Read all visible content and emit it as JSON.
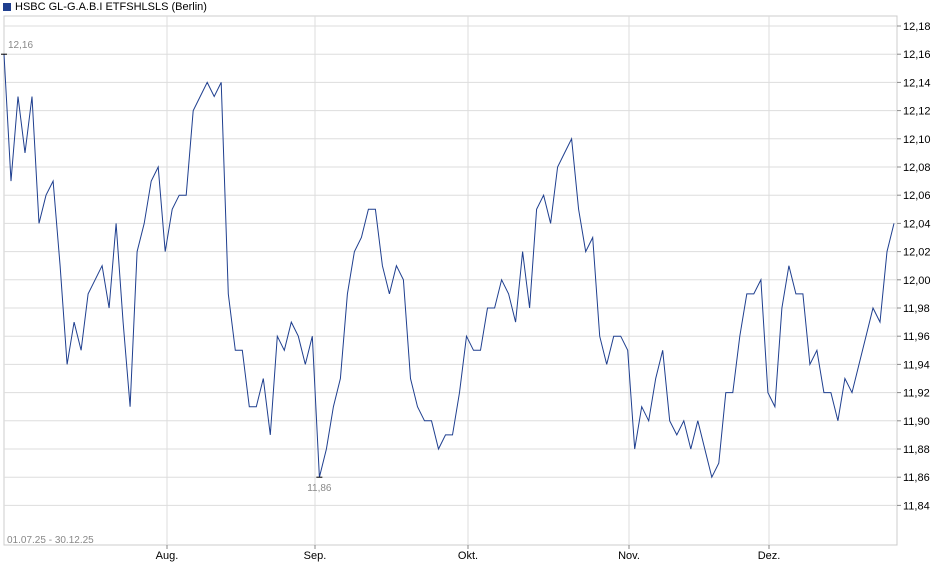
{
  "chart_data": {
    "type": "line",
    "legend": {
      "label": "HSBC GL-G.A.B.I ETFSHLSLS (Berlin)",
      "color": "#1f3f8f",
      "position": "top-left"
    },
    "date_range_label": "01.07.25 - 30.12.25",
    "x_ticks": [
      "Aug.",
      "Sep.",
      "Okt.",
      "Nov.",
      "Dez."
    ],
    "y_ticks": [
      "12,18",
      "12,16",
      "12,14",
      "12,12",
      "12,10",
      "12,08",
      "12,06",
      "12,04",
      "12,02",
      "12,00",
      "11,98",
      "11,96",
      "11,94",
      "11,92",
      "11,90",
      "11,88",
      "11,86",
      "11,84"
    ],
    "ylim": [
      11.82,
      12.185
    ],
    "grid": true,
    "annotations": {
      "max_label": "12,16",
      "min_label": "11,86"
    },
    "series": [
      {
        "color": "#1f3f8f",
        "values": [
          12.16,
          12.07,
          12.13,
          12.09,
          12.13,
          12.04,
          12.06,
          12.07,
          12.01,
          11.94,
          11.97,
          11.95,
          11.99,
          12.0,
          12.01,
          11.98,
          12.04,
          11.97,
          11.91,
          12.02,
          12.04,
          12.07,
          12.08,
          12.02,
          12.05,
          12.06,
          12.06,
          12.12,
          12.13,
          12.14,
          12.13,
          12.14,
          11.99,
          11.95,
          11.95,
          11.91,
          11.91,
          11.93,
          11.89,
          11.96,
          11.95,
          11.97,
          11.96,
          11.94,
          11.96,
          11.86,
          11.88,
          11.91,
          11.93,
          11.99,
          12.02,
          12.03,
          12.05,
          12.05,
          12.01,
          11.99,
          12.01,
          12.0,
          11.93,
          11.91,
          11.9,
          11.9,
          11.88,
          11.89,
          11.89,
          11.92,
          11.96,
          11.95,
          11.95,
          11.98,
          11.98,
          12.0,
          11.99,
          11.97,
          12.02,
          11.98,
          12.05,
          12.06,
          12.04,
          12.08,
          12.09,
          12.1,
          12.05,
          12.02,
          12.03,
          11.96,
          11.94,
          11.96,
          11.96,
          11.95,
          11.88,
          11.91,
          11.9,
          11.93,
          11.95,
          11.9,
          11.89,
          11.9,
          11.88,
          11.9,
          11.88,
          11.86,
          11.87,
          11.92,
          11.92,
          11.96,
          11.99,
          11.99,
          12.0,
          11.92,
          11.91,
          11.98,
          12.01,
          11.99,
          11.99,
          11.94,
          11.95,
          11.92,
          11.92,
          11.9,
          11.93,
          11.92,
          11.94,
          11.96,
          11.98,
          11.97,
          12.02,
          12.04
        ]
      }
    ]
  }
}
